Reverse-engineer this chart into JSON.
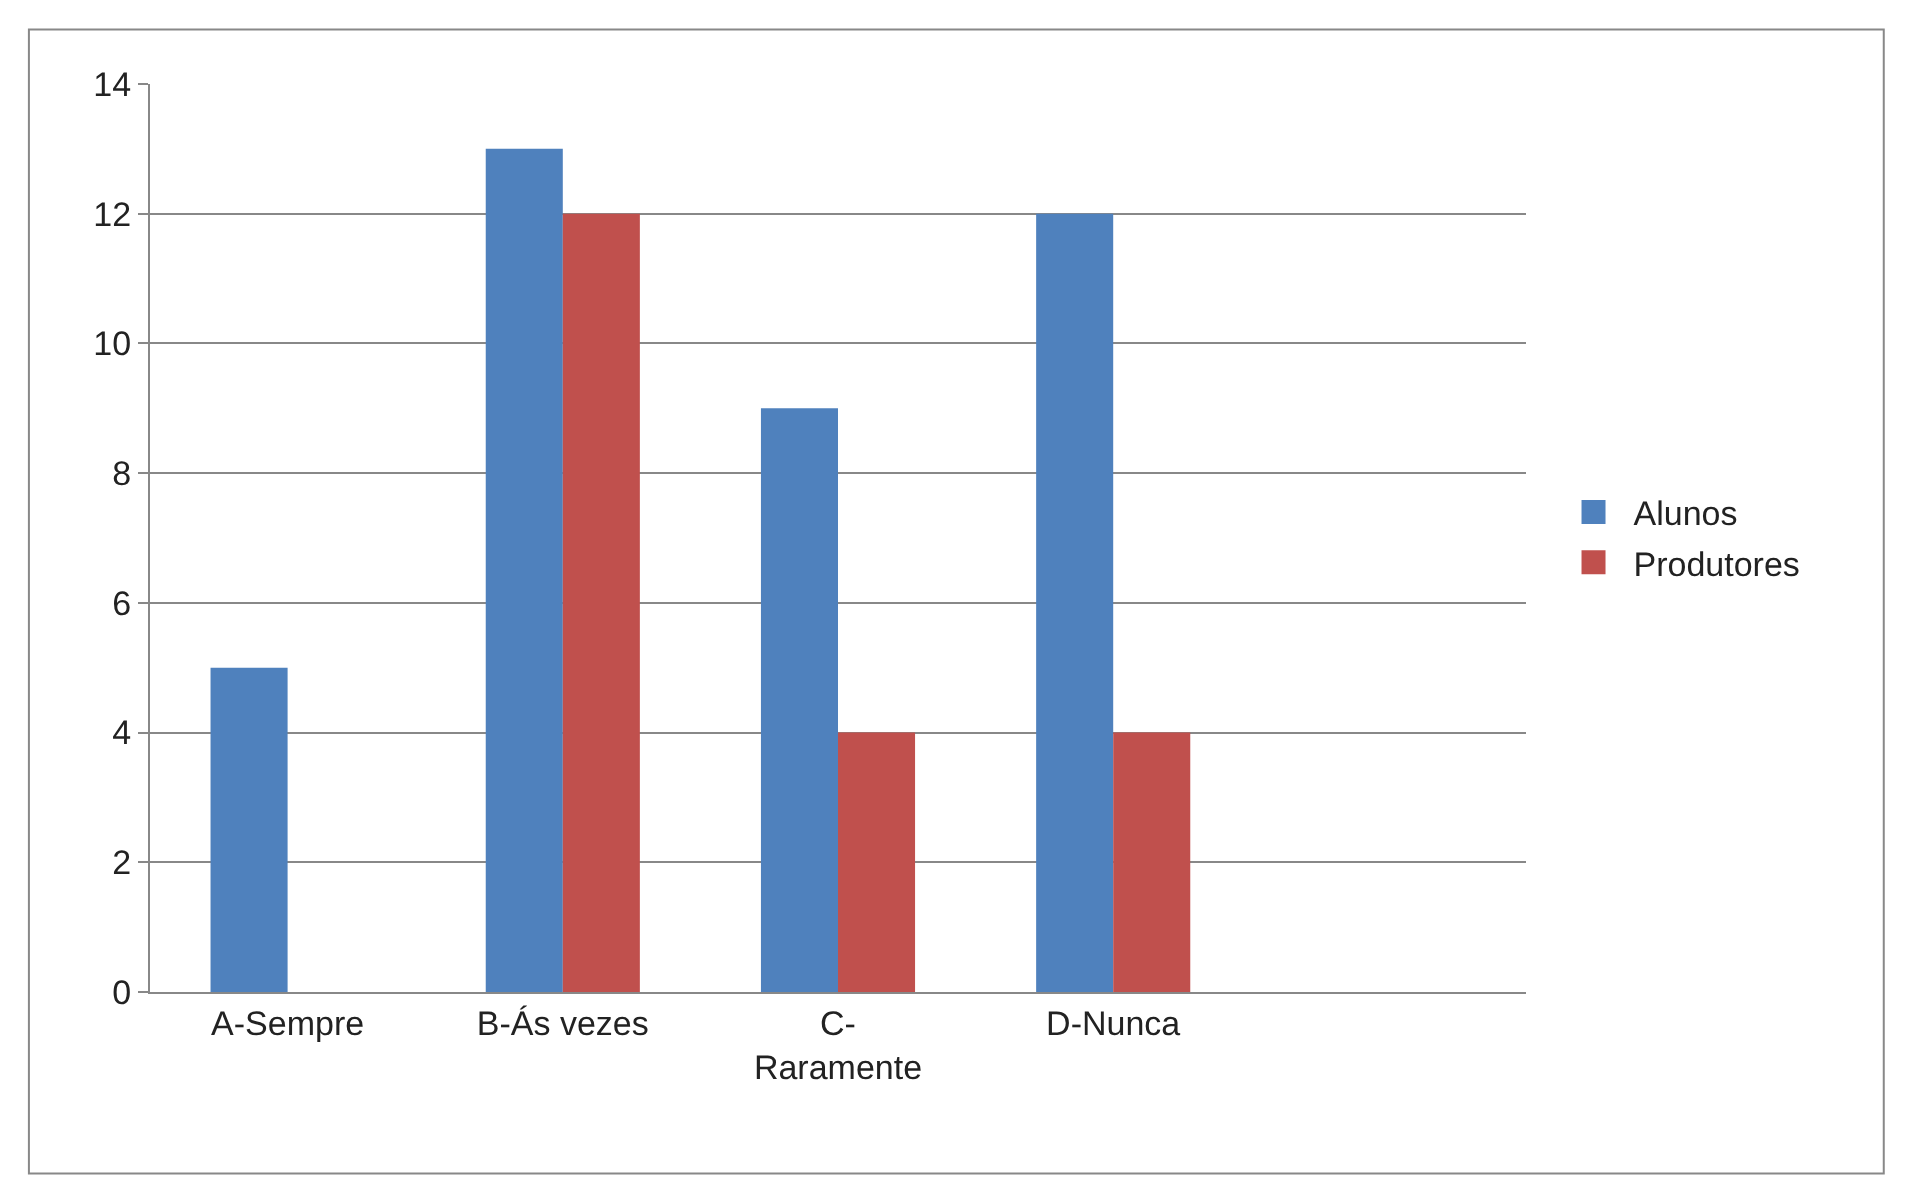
{
  "chart_data": {
    "type": "bar",
    "categories": [
      "A-Sempre",
      "B-Ás vezes",
      "C-Raramente",
      "D-Nunca",
      null
    ],
    "series": [
      {
        "name": "Alunos",
        "color": "#4f81bd",
        "values": [
          5,
          13,
          9,
          12,
          null
        ]
      },
      {
        "name": "Produtores",
        "color": "#c0504d",
        "values": [
          0,
          12,
          4,
          4,
          null
        ]
      }
    ],
    "ylim": [
      0,
      14
    ],
    "yticks": [
      0,
      2,
      4,
      6,
      8,
      10,
      12,
      14
    ],
    "grid": "y",
    "legend": "right"
  }
}
